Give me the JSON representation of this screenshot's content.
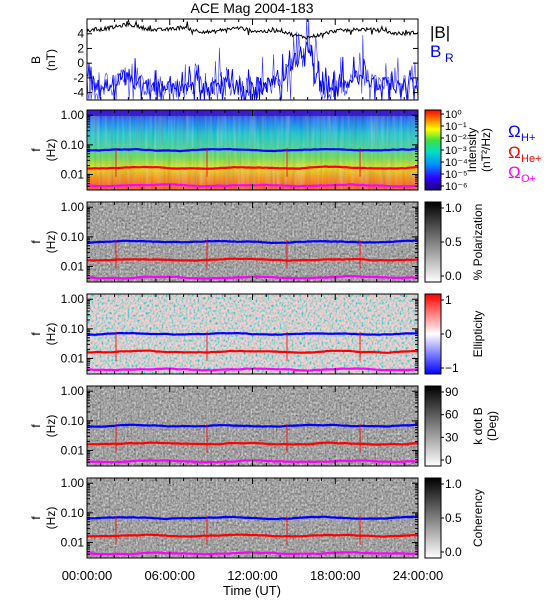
{
  "title": "ACE Mag 2004-183",
  "colors": {
    "B_total": "#000000",
    "B_R": "#0000ff",
    "H_plus": "#0000ff",
    "He_plus": "#ff0000",
    "O_plus": "#ff00ff"
  },
  "xaxis": {
    "label": "Time (UT)",
    "ticks": [
      "00:00:00",
      "06:00:00",
      "12:00:00",
      "18:00:00",
      "24:00:00"
    ]
  },
  "legends": {
    "b_total_label": "|B|",
    "b_r_label": "B",
    "b_r_sub": "R",
    "omega_symbol": "Ω",
    "h_plus": "H+",
    "he_plus": "He+",
    "o_plus": "O+"
  },
  "chart_data": [
    {
      "type": "line",
      "panel": "magnetic-field",
      "ylabel": "B",
      "yunit": "(nT)",
      "ylim": [
        -5,
        6
      ],
      "yticks": [
        "4",
        "2",
        "0",
        "-2",
        "-4"
      ],
      "x_hours": [
        0,
        1,
        2,
        3,
        4,
        5,
        6,
        7,
        8,
        9,
        10,
        11,
        12,
        13,
        14,
        15,
        16,
        17,
        18,
        19,
        20,
        21,
        22,
        23,
        24
      ],
      "series": [
        {
          "name": "|B|",
          "values": [
            4.4,
            4.6,
            4.9,
            5.3,
            4.8,
            4.5,
            4.6,
            4.9,
            4.4,
            4.2,
            4.6,
            4.8,
            4.4,
            4.3,
            4.5,
            3.8,
            3.5,
            3.9,
            4.4,
            4.5,
            4.6,
            4.5,
            4.1,
            4.0,
            4.2
          ]
        },
        {
          "name": "B_R",
          "values": [
            -2.8,
            -3.3,
            -2.5,
            -1.8,
            -3.0,
            -3.5,
            -3.0,
            -3.6,
            -2.8,
            -3.2,
            -3.0,
            -3.4,
            -3.0,
            -2.9,
            -2.5,
            0.5,
            2.8,
            -3.8,
            -3.5,
            -2.8,
            -1.5,
            -3.2,
            -2.6,
            -3.0,
            -2.6
          ]
        }
      ]
    },
    {
      "type": "heatmap",
      "panel": "intensity",
      "ylabel": "f",
      "yunit": "(Hz)",
      "yscale": "log",
      "ylim": [
        0.003,
        1.5
      ],
      "yticks": [
        "1.00",
        "0.10",
        "0.01"
      ],
      "colorbar": {
        "label": "Intensity",
        "unit": "(nT²/Hz)",
        "scale": "rainbow",
        "ticks": [
          "10⁰",
          "10⁻¹",
          "10⁻²",
          "10⁻³",
          "10⁻⁴",
          "10⁻⁵",
          "10⁻⁶"
        ]
      }
    },
    {
      "type": "heatmap",
      "panel": "polarization",
      "ylabel": "f",
      "yunit": "(Hz)",
      "yscale": "log",
      "ylim": [
        0.003,
        1.5
      ],
      "yticks": [
        "1.00",
        "0.10",
        "0.01"
      ],
      "colorbar": {
        "label": "% Polarization",
        "scale": "grayscale",
        "ticks": [
          "1.0",
          "0.5",
          "0.0"
        ]
      }
    },
    {
      "type": "heatmap",
      "panel": "ellipticity",
      "ylabel": "f",
      "yunit": "(Hz)",
      "yscale": "log",
      "ylim": [
        0.003,
        1.5
      ],
      "yticks": [
        "1.00",
        "0.10",
        "0.01"
      ],
      "colorbar": {
        "label": "Ellipticity",
        "scale": "blue-white-red",
        "ticks": [
          "1",
          "0",
          "−1"
        ]
      }
    },
    {
      "type": "heatmap",
      "panel": "k-dot-b",
      "ylabel": "f",
      "yunit": "(Hz)",
      "yscale": "log",
      "ylim": [
        0.003,
        1.5
      ],
      "yticks": [
        "1.00",
        "0.10",
        "0.01"
      ],
      "colorbar": {
        "label": "k dot B",
        "unit": "(Deg)",
        "scale": "grayscale",
        "ticks": [
          "90",
          "60",
          "30",
          "0"
        ]
      }
    },
    {
      "type": "heatmap",
      "panel": "coherency",
      "ylabel": "f",
      "yunit": "(Hz)",
      "yscale": "log",
      "ylim": [
        0.003,
        1.5
      ],
      "yticks": [
        "1.00",
        "0.10",
        "0.01"
      ],
      "colorbar": {
        "label": "Coherency",
        "scale": "grayscale",
        "ticks": [
          "1.0",
          "0.5",
          "0.0"
        ]
      }
    }
  ],
  "gyrofrequency_lines_hz": {
    "H+": 0.068,
    "He+": 0.017,
    "O+": 0.0043
  }
}
